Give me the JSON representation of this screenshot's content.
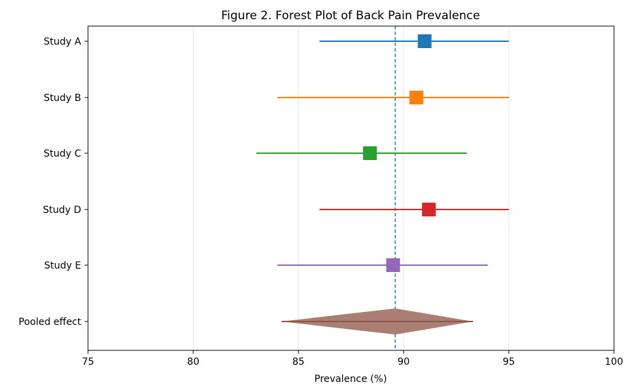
{
  "chart_data": {
    "type": "forest",
    "title": "Figure 2. Forest Plot of Back Pain Prevalence",
    "xlabel": "Prevalence (%)",
    "xlim": [
      75,
      100
    ],
    "xticks": [
      "75",
      "80",
      "85",
      "90",
      "95",
      "100"
    ],
    "grid": "vertical",
    "reference_line": 89.6,
    "reference_color": "#1f77b4",
    "studies": [
      {
        "label": "Study A",
        "estimate": 91.0,
        "lower": 86.0,
        "upper": 95.0,
        "color": "#1f77b4"
      },
      {
        "label": "Study B",
        "estimate": 90.6,
        "lower": 84.0,
        "upper": 95.0,
        "color": "#ff7f0e"
      },
      {
        "label": "Study C",
        "estimate": 88.4,
        "lower": 83.0,
        "upper": 93.0,
        "color": "#2ca02c"
      },
      {
        "label": "Study D",
        "estimate": 91.2,
        "lower": 86.0,
        "upper": 95.0,
        "color": "#d62728"
      },
      {
        "label": "Study E",
        "estimate": 89.5,
        "lower": 84.0,
        "upper": 94.0,
        "color": "#9467bd"
      }
    ],
    "pooled": {
      "label": "Pooled effect",
      "estimate": 89.6,
      "lower": 84.2,
      "upper": 93.3,
      "color": "#a97f73",
      "line_color": "#8c564b"
    }
  }
}
